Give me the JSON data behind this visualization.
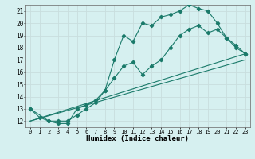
{
  "title": "",
  "xlabel": "Humidex (Indice chaleur)",
  "bg_color": "#d6f0f0",
  "grid_color": "#c8dede",
  "line_color": "#1a7a6a",
  "xlim": [
    -0.5,
    23.5
  ],
  "ylim": [
    11.5,
    21.5
  ],
  "xticks": [
    0,
    1,
    2,
    3,
    4,
    5,
    6,
    7,
    8,
    9,
    10,
    11,
    12,
    13,
    14,
    15,
    16,
    17,
    18,
    19,
    20,
    21,
    22,
    23
  ],
  "yticks": [
    12,
    13,
    14,
    15,
    16,
    17,
    18,
    19,
    20,
    21
  ],
  "line1_x": [
    0,
    1,
    2,
    3,
    4,
    5,
    6,
    7,
    8,
    9,
    10,
    11,
    12,
    13,
    14,
    15,
    16,
    17,
    18,
    19,
    20,
    21,
    22,
    23
  ],
  "line1_y": [
    13,
    12.3,
    12,
    11.8,
    11.8,
    13.0,
    13.3,
    13.7,
    14.5,
    17.0,
    19.0,
    18.5,
    20.0,
    19.8,
    20.5,
    20.7,
    21.0,
    21.5,
    21.2,
    21.0,
    20.0,
    18.8,
    18.0,
    17.5
  ],
  "line2_x": [
    0,
    2,
    3,
    4,
    5,
    6,
    7,
    8,
    9,
    10,
    11,
    12,
    13,
    14,
    15,
    16,
    17,
    18,
    19,
    20,
    21,
    22,
    23
  ],
  "line2_y": [
    13,
    12,
    12,
    12,
    12.5,
    13.0,
    13.5,
    14.5,
    15.5,
    16.5,
    16.8,
    15.8,
    16.5,
    17.0,
    18.0,
    19.0,
    19.5,
    19.8,
    19.2,
    19.5,
    18.8,
    18.2,
    17.5
  ],
  "line3_x": [
    0,
    23
  ],
  "line3_y": [
    12,
    17.5
  ],
  "line4_x": [
    0,
    23
  ],
  "line4_y": [
    12,
    17.0
  ],
  "marker_size": 2.2,
  "linewidth": 0.8
}
